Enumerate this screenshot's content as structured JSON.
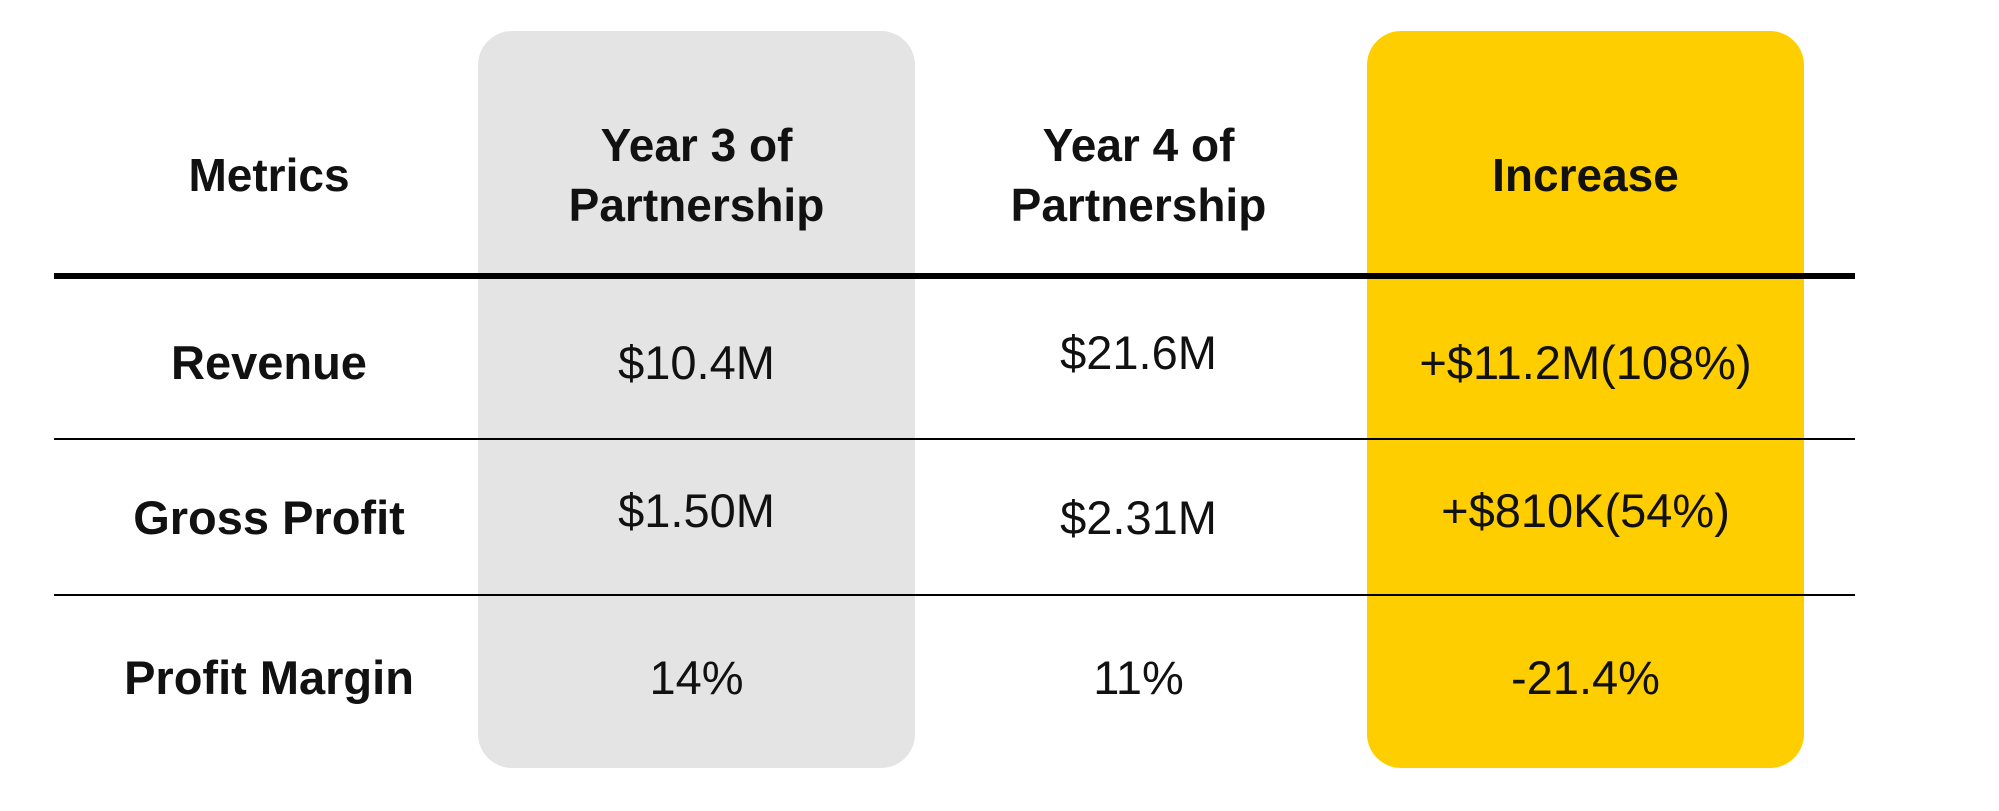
{
  "colors": {
    "year3_column": "#e4e4e4",
    "increase_column": "#ffce00",
    "rule": "#000000",
    "text": "#111111"
  },
  "table": {
    "headers": {
      "metrics": "Metrics",
      "year3": "Year 3 of Partnership",
      "year4": "Year 4 of Partnership",
      "increase": "Increase"
    },
    "rows": [
      {
        "metric": "Revenue",
        "year3": "$10.4M",
        "year4": "$21.6M",
        "increase": "+$11.2M(108%)"
      },
      {
        "metric": "Gross Profit",
        "year3": "$1.50M",
        "year4": "$2.31M",
        "increase": "+$810K(54%)"
      },
      {
        "metric": "Profit Margin",
        "year3": "14%",
        "year4": "11%",
        "increase": "-21.4%"
      }
    ]
  }
}
